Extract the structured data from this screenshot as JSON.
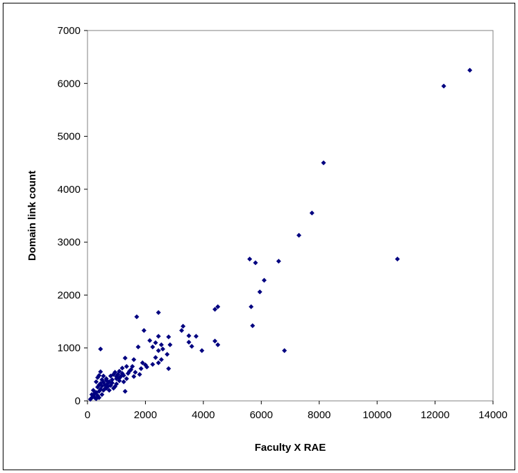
{
  "chart_data": {
    "type": "scatter",
    "title": "",
    "xlabel": "Faculty X RAE",
    "ylabel": "Domain link count",
    "xlim": [
      0,
      14000
    ],
    "ylim": [
      0,
      7000
    ],
    "xticks": [
      0,
      2000,
      4000,
      6000,
      8000,
      10000,
      12000,
      14000
    ],
    "yticks": [
      0,
      1000,
      2000,
      3000,
      4000,
      5000,
      6000,
      7000
    ],
    "grid": false,
    "legend": "none",
    "marker_color": "#000080",
    "marker": "diamond",
    "points": [
      [
        13200,
        6250
      ],
      [
        12300,
        5950
      ],
      [
        8150,
        4500
      ],
      [
        7750,
        3550
      ],
      [
        7300,
        3130
      ],
      [
        10700,
        2680
      ],
      [
        5600,
        2680
      ],
      [
        5800,
        2610
      ],
      [
        6600,
        2640
      ],
      [
        6100,
        2280
      ],
      [
        5950,
        2060
      ],
      [
        5650,
        1780
      ],
      [
        5700,
        1420
      ],
      [
        6800,
        950
      ],
      [
        4500,
        1780
      ],
      [
        4400,
        1730
      ],
      [
        4400,
        1130
      ],
      [
        4500,
        1060
      ],
      [
        3300,
        1410
      ],
      [
        3250,
        1330
      ],
      [
        3500,
        1230
      ],
      [
        3750,
        1220
      ],
      [
        3500,
        1110
      ],
      [
        3600,
        1030
      ],
      [
        3950,
        950
      ],
      [
        2450,
        1670
      ],
      [
        1700,
        1590
      ],
      [
        1950,
        1330
      ],
      [
        2450,
        1220
      ],
      [
        2800,
        1210
      ],
      [
        2150,
        1140
      ],
      [
        2350,
        1100
      ],
      [
        2550,
        1060
      ],
      [
        2850,
        1060
      ],
      [
        2600,
        980
      ],
      [
        2450,
        950
      ],
      [
        1750,
        1020
      ],
      [
        2250,
        1020
      ],
      [
        2750,
        880
      ],
      [
        2350,
        820
      ],
      [
        2550,
        780
      ],
      [
        2450,
        720
      ],
      [
        2250,
        690
      ],
      [
        2800,
        610
      ],
      [
        1600,
        780
      ],
      [
        1900,
        720
      ],
      [
        2000,
        680
      ],
      [
        2050,
        640
      ],
      [
        1850,
        610
      ],
      [
        1550,
        650
      ],
      [
        1350,
        650
      ],
      [
        1500,
        590
      ],
      [
        1650,
        540
      ],
      [
        1400,
        520
      ],
      [
        1800,
        500
      ],
      [
        1600,
        460
      ],
      [
        1300,
        810
      ],
      [
        1450,
        560
      ],
      [
        1200,
        620
      ],
      [
        1100,
        560
      ],
      [
        1050,
        500
      ],
      [
        950,
        540
      ],
      [
        1250,
        480
      ],
      [
        1150,
        460
      ],
      [
        900,
        500
      ],
      [
        1350,
        420
      ],
      [
        1100,
        380
      ],
      [
        1000,
        420
      ],
      [
        800,
        470
      ],
      [
        850,
        400
      ],
      [
        750,
        360
      ],
      [
        700,
        330
      ],
      [
        650,
        390
      ],
      [
        1250,
        360
      ],
      [
        1000,
        320
      ],
      [
        950,
        270
      ],
      [
        800,
        290
      ],
      [
        600,
        300
      ],
      [
        550,
        350
      ],
      [
        700,
        270
      ],
      [
        650,
        240
      ],
      [
        500,
        280
      ],
      [
        450,
        330
      ],
      [
        400,
        300
      ],
      [
        900,
        240
      ],
      [
        1300,
        180
      ],
      [
        450,
        980
      ],
      [
        450,
        550
      ],
      [
        400,
        480
      ],
      [
        350,
        440
      ],
      [
        500,
        400
      ],
      [
        300,
        360
      ],
      [
        350,
        260
      ],
      [
        450,
        220
      ],
      [
        550,
        200
      ],
      [
        400,
        180
      ],
      [
        300,
        160
      ],
      [
        250,
        140
      ],
      [
        200,
        110
      ],
      [
        350,
        100
      ],
      [
        150,
        120
      ],
      [
        150,
        60
      ],
      [
        250,
        60
      ],
      [
        300,
        40
      ],
      [
        100,
        30
      ],
      [
        400,
        60
      ],
      [
        500,
        120
      ],
      [
        200,
        200
      ],
      [
        600,
        230
      ],
      [
        750,
        200
      ],
      [
        850,
        340
      ],
      [
        1000,
        460
      ],
      [
        1100,
        430
      ],
      [
        1200,
        520
      ],
      [
        650,
        420
      ],
      [
        550,
        470
      ]
    ]
  }
}
